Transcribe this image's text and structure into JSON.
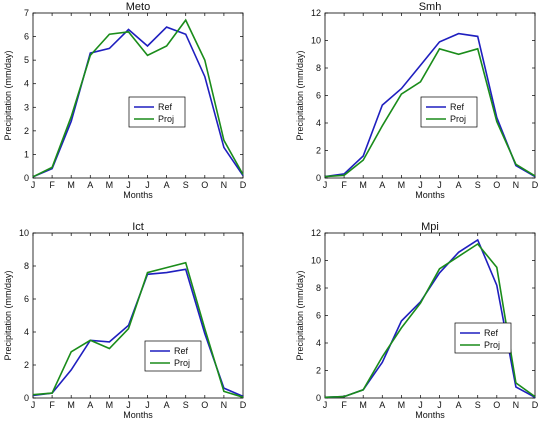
{
  "chart_data": [
    {
      "type": "line",
      "title": "Meto",
      "xlabel": "Months",
      "ylabel": "Precipitation (mm/day)",
      "categories": [
        "J",
        "F",
        "M",
        "A",
        "M",
        "J",
        "J",
        "A",
        "S",
        "O",
        "N",
        "D"
      ],
      "ylim": [
        0,
        7
      ],
      "yticks": [
        0,
        1,
        2,
        3,
        4,
        5,
        6,
        7
      ],
      "legend_position": "center",
      "series": [
        {
          "name": "Ref",
          "color": "#1f1fbf",
          "values": [
            0.05,
            0.4,
            2.4,
            5.3,
            5.5,
            6.3,
            5.6,
            6.4,
            6.1,
            4.3,
            1.3,
            0.1
          ]
        },
        {
          "name": "Proj",
          "color": "#1a8c1a",
          "values": [
            0.05,
            0.45,
            2.6,
            5.2,
            6.1,
            6.2,
            5.2,
            5.6,
            6.7,
            5.0,
            1.6,
            0.15
          ]
        }
      ]
    },
    {
      "type": "line",
      "title": "Smh",
      "xlabel": "Months",
      "ylabel": "Precipitation (mm/day)",
      "categories": [
        "J",
        "F",
        "M",
        "A",
        "M",
        "J",
        "J",
        "A",
        "S",
        "O",
        "N",
        "D"
      ],
      "ylim": [
        0,
        12
      ],
      "yticks": [
        0,
        2,
        4,
        6,
        8,
        10,
        12
      ],
      "legend_position": "center",
      "series": [
        {
          "name": "Ref",
          "color": "#1f1fbf",
          "values": [
            0.1,
            0.3,
            1.6,
            5.3,
            6.5,
            8.2,
            9.9,
            10.5,
            10.3,
            4.4,
            0.9,
            0.1
          ]
        },
        {
          "name": "Proj",
          "color": "#1a8c1a",
          "values": [
            0.1,
            0.2,
            1.3,
            3.8,
            6.1,
            7.0,
            9.4,
            9.0,
            9.4,
            4.1,
            1.0,
            0.15
          ]
        }
      ]
    },
    {
      "type": "line",
      "title": "Ict",
      "xlabel": "Months",
      "ylabel": "Precipitation (mm/day)",
      "categories": [
        "J",
        "F",
        "M",
        "A",
        "M",
        "J",
        "J",
        "A",
        "S",
        "O",
        "N",
        "D"
      ],
      "ylim": [
        0,
        10
      ],
      "yticks": [
        0,
        2,
        4,
        6,
        8,
        10
      ],
      "legend_position": "bottom-center",
      "series": [
        {
          "name": "Ref",
          "color": "#1f1fbf",
          "values": [
            0.15,
            0.3,
            1.7,
            3.5,
            3.4,
            4.4,
            7.5,
            7.6,
            7.8,
            3.9,
            0.6,
            0.1
          ]
        },
        {
          "name": "Proj",
          "color": "#1a8c1a",
          "values": [
            0.2,
            0.3,
            2.8,
            3.5,
            3.0,
            4.2,
            7.6,
            7.9,
            8.2,
            4.2,
            0.4,
            0.05
          ]
        }
      ]
    },
    {
      "type": "line",
      "title": "Mpi",
      "xlabel": "Months",
      "ylabel": "Precipitation (mm/day)",
      "categories": [
        "J",
        "F",
        "M",
        "A",
        "M",
        "J",
        "J",
        "A",
        "S",
        "O",
        "N",
        "D"
      ],
      "ylim": [
        0,
        12
      ],
      "yticks": [
        0,
        2,
        4,
        6,
        8,
        10,
        12
      ],
      "legend_position": "bottom-right",
      "series": [
        {
          "name": "Ref",
          "color": "#1f1fbf",
          "values": [
            0.05,
            0.1,
            0.6,
            2.6,
            5.6,
            7.0,
            9.1,
            10.6,
            11.5,
            8.2,
            0.8,
            0.05
          ]
        },
        {
          "name": "Proj",
          "color": "#1a8c1a",
          "values": [
            0.05,
            0.1,
            0.6,
            3.0,
            5.1,
            6.9,
            9.4,
            10.3,
            11.2,
            9.5,
            1.1,
            0.1
          ]
        }
      ]
    }
  ]
}
